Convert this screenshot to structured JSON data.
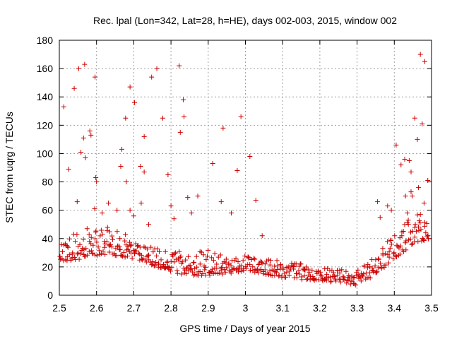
{
  "chart_data": {
    "type": "scatter",
    "title": "Rec. lpal (Lon=342, Lat=28, h=HE), days 002-003, 2015, window 002",
    "xlabel": "GPS time / Days of year 2015",
    "ylabel": "STEC from uqrg / TECUs",
    "xlim": [
      2.5,
      3.5
    ],
    "ylim": [
      0,
      180
    ],
    "x_ticks": [
      2.5,
      2.6,
      2.7,
      2.8,
      2.9,
      3.0,
      3.1,
      3.2,
      3.3,
      3.4,
      3.5
    ],
    "x_tick_labels": [
      "2.5",
      "2.6",
      "2.7",
      "2.8",
      "2.9",
      "3",
      "3.1",
      "3.2",
      "3.3",
      "3.4",
      "3.5"
    ],
    "y_ticks": [
      0,
      20,
      40,
      60,
      80,
      100,
      120,
      140,
      160,
      180
    ],
    "y_tick_labels": [
      "0",
      "20",
      "40",
      "60",
      "80",
      "100",
      "120",
      "140",
      "160",
      "180"
    ],
    "grid": true,
    "marker": "plus",
    "point_color": "#cc0000",
    "upper_scatter_points": [
      [
        2.512,
        133
      ],
      [
        2.525,
        89
      ],
      [
        2.54,
        146
      ],
      [
        2.552,
        160
      ],
      [
        2.568,
        163
      ],
      [
        2.548,
        66
      ],
      [
        2.558,
        101
      ],
      [
        2.565,
        111
      ],
      [
        2.57,
        97
      ],
      [
        2.582,
        116
      ],
      [
        2.585,
        113
      ],
      [
        2.596,
        154
      ],
      [
        2.598,
        83
      ],
      [
        2.6,
        80
      ],
      [
        2.595,
        61
      ],
      [
        2.668,
        103
      ],
      [
        2.678,
        125
      ],
      [
        2.69,
        147
      ],
      [
        2.702,
        136
      ],
      [
        2.718,
        91
      ],
      [
        2.728,
        112
      ],
      [
        2.728,
        87
      ],
      [
        2.748,
        154
      ],
      [
        2.762,
        160
      ],
      [
        2.778,
        125
      ],
      [
        2.792,
        85
      ],
      [
        2.822,
        162
      ],
      [
        2.825,
        115
      ],
      [
        2.833,
        138
      ],
      [
        2.835,
        126
      ],
      [
        2.845,
        69
      ],
      [
        2.872,
        70
      ],
      [
        2.912,
        93
      ],
      [
        2.94,
        118
      ],
      [
        2.978,
        88
      ],
      [
        2.988,
        126
      ],
      [
        3.012,
        98
      ],
      [
        3.028,
        67
      ],
      [
        3.355,
        66
      ],
      [
        3.362,
        55
      ],
      [
        3.382,
        63
      ],
      [
        3.392,
        60
      ],
      [
        3.405,
        106
      ],
      [
        3.418,
        92
      ],
      [
        3.428,
        96
      ],
      [
        3.44,
        95
      ],
      [
        3.445,
        87
      ],
      [
        3.455,
        125
      ],
      [
        3.462,
        110
      ],
      [
        3.47,
        170
      ],
      [
        3.475,
        121
      ],
      [
        3.482,
        165
      ],
      [
        3.49,
        81
      ],
      [
        3.465,
        76
      ],
      [
        3.48,
        65
      ],
      [
        2.665,
        91
      ],
      [
        2.68,
        80
      ],
      [
        2.615,
        58
      ],
      [
        2.632,
        65
      ],
      [
        2.655,
        60
      ],
      [
        2.69,
        60
      ],
      [
        2.7,
        56
      ],
      [
        2.72,
        65
      ],
      [
        2.74,
        50
      ],
      [
        2.8,
        63
      ],
      [
        2.808,
        54
      ],
      [
        2.855,
        58
      ],
      [
        2.935,
        66
      ],
      [
        2.962,
        58
      ],
      [
        3.045,
        42
      ],
      [
        3.43,
        70
      ],
      [
        3.445,
        73
      ],
      [
        3.448,
        70
      ],
      [
        3.435,
        58
      ],
      [
        3.47,
        57
      ]
    ],
    "lower_band": {
      "description": "dense arc of STEC measurements, about 25 at 2.5, near 14 around 2.85, 18-22 near 3.0, a minimum near 8 around 3.3, rising to 45 by 3.5",
      "min_points": [
        [
          2.5,
          24
        ],
        [
          2.55,
          25
        ],
        [
          2.6,
          28
        ],
        [
          2.65,
          28
        ],
        [
          2.7,
          26
        ],
        [
          2.75,
          21
        ],
        [
          2.8,
          16
        ],
        [
          2.85,
          14
        ],
        [
          2.9,
          14
        ],
        [
          2.95,
          15
        ],
        [
          3.0,
          17
        ],
        [
          3.05,
          15
        ],
        [
          3.1,
          12
        ],
        [
          3.15,
          11
        ],
        [
          3.2,
          10
        ],
        [
          3.25,
          9
        ],
        [
          3.3,
          7
        ],
        [
          3.35,
          14
        ],
        [
          3.4,
          26
        ],
        [
          3.45,
          35
        ],
        [
          3.5,
          40
        ]
      ],
      "max_points": [
        [
          2.5,
          38
        ],
        [
          2.55,
          46
        ],
        [
          2.6,
          50
        ],
        [
          2.65,
          48
        ],
        [
          2.7,
          42
        ],
        [
          2.75,
          36
        ],
        [
          2.8,
          32
        ],
        [
          2.85,
          30
        ],
        [
          2.9,
          32
        ],
        [
          2.95,
          30
        ],
        [
          3.0,
          28
        ],
        [
          3.05,
          26
        ],
        [
          3.1,
          24
        ],
        [
          3.15,
          22
        ],
        [
          3.2,
          20
        ],
        [
          3.25,
          18
        ],
        [
          3.3,
          18
        ],
        [
          3.35,
          28
        ],
        [
          3.4,
          45
        ],
        [
          3.45,
          56
        ],
        [
          3.5,
          60
        ]
      ]
    }
  }
}
